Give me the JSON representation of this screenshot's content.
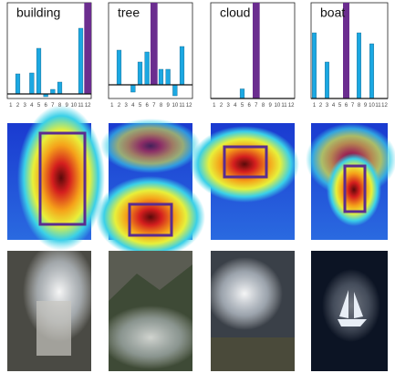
{
  "chart_data": [
    {
      "type": "bar",
      "title": "building",
      "categories": [
        "1",
        "2",
        "3",
        "4",
        "5",
        "6",
        "7",
        "8",
        "9",
        "10",
        "11",
        "12"
      ],
      "values": [
        0,
        22,
        0,
        23,
        50,
        -3,
        5,
        13,
        0,
        0,
        72,
        100
      ],
      "color": "#1ba8e2",
      "highlight_index": 11,
      "highlight_color": "#6b2d8f",
      "ylim": [
        -5,
        100
      ]
    },
    {
      "type": "bar",
      "title": "tree",
      "categories": [
        "1",
        "2",
        "3",
        "4",
        "5",
        "6",
        "7",
        "8",
        "9",
        "10",
        "11",
        "12"
      ],
      "values": [
        0,
        38,
        0,
        -8,
        25,
        36,
        90,
        17,
        17,
        -12,
        42,
        0
      ],
      "color": "#1ba8e2",
      "highlight_index": 6,
      "highlight_color": "#6b2d8f",
      "ylim": [
        -15,
        90
      ]
    },
    {
      "type": "bar",
      "title": "cloud",
      "categories": [
        "1",
        "2",
        "3",
        "4",
        "5",
        "6",
        "7",
        "8",
        "9",
        "10",
        "11",
        "12"
      ],
      "values": [
        0,
        0,
        0,
        0,
        10,
        0,
        100,
        0,
        0,
        0,
        0,
        0
      ],
      "color": "#1ba8e2",
      "highlight_index": 6,
      "highlight_color": "#6b2d8f",
      "ylim": [
        0,
        100
      ]
    },
    {
      "type": "bar",
      "title": "boat",
      "categories": [
        "1",
        "2",
        "3",
        "4",
        "5",
        "6",
        "7",
        "8",
        "9",
        "10",
        "11",
        "12"
      ],
      "values": [
        72,
        0,
        40,
        0,
        0,
        105,
        0,
        72,
        0,
        60,
        0,
        0
      ],
      "color": "#1ba8e2",
      "highlight_index": 5,
      "highlight_color": "#6b2d8f",
      "ylim": [
        0,
        105
      ]
    }
  ]
}
